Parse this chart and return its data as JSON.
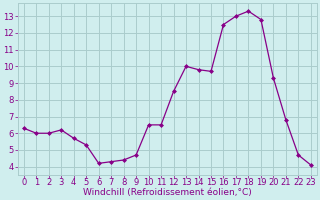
{
  "x": [
    0,
    1,
    2,
    3,
    4,
    5,
    6,
    7,
    8,
    9,
    10,
    11,
    12,
    13,
    14,
    15,
    16,
    17,
    18,
    19,
    20,
    21,
    22,
    23
  ],
  "y": [
    6.3,
    6.0,
    6.0,
    6.2,
    5.7,
    5.3,
    4.2,
    4.3,
    4.4,
    4.7,
    6.5,
    6.5,
    8.5,
    10.0,
    9.8,
    9.7,
    12.5,
    13.0,
    13.3,
    12.8,
    9.3,
    6.8,
    4.7,
    4.1
  ],
  "line_color": "#880088",
  "marker_color": "#880088",
  "bg_color": "#d0eeee",
  "grid_color": "#aacccc",
  "xlabel": "Windchill (Refroidissement éolien,°C)",
  "xlabel_color": "#880088",
  "xlabel_fontsize": 6.5,
  "tick_fontsize": 6.0,
  "ylim": [
    3.5,
    13.8
  ],
  "yticks": [
    4,
    5,
    6,
    7,
    8,
    9,
    10,
    11,
    12,
    13
  ],
  "xticks": [
    0,
    1,
    2,
    3,
    4,
    5,
    6,
    7,
    8,
    9,
    10,
    11,
    12,
    13,
    14,
    15,
    16,
    17,
    18,
    19,
    20,
    21,
    22,
    23
  ]
}
